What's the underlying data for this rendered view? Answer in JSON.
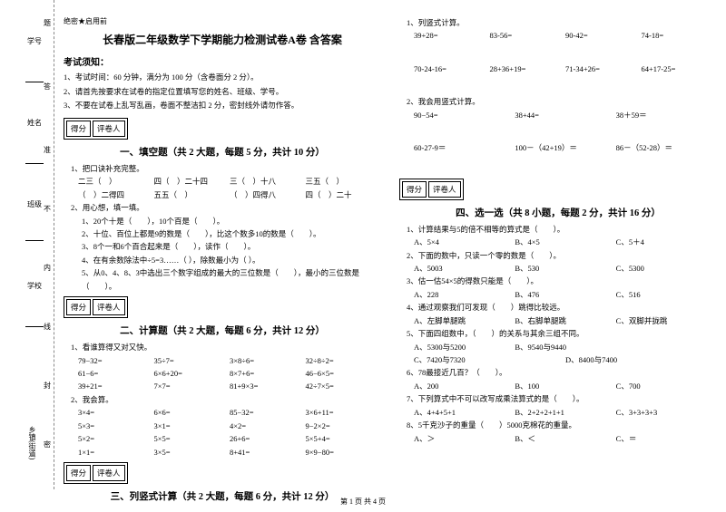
{
  "binding": {
    "labels": [
      "学号",
      "姓名",
      "班级",
      "学校",
      "乡镇(街道)"
    ],
    "markers": [
      "题",
      "答",
      "准",
      "不",
      "内",
      "线",
      "封",
      "密"
    ]
  },
  "secret": "绝密★启用前",
  "title": "长春版二年级数学下学期能力检测试卷A卷 含答案",
  "notice_head": "考试须知：",
  "notices": [
    "1、考试时间：60 分钟，满分为 100 分（含卷面分 2 分）。",
    "2、请首先按要求在试卷的指定位置填写您的姓名、班级、学号。",
    "3、不要在试卷上乱写乱画，卷面不整洁扣 2 分，密封线外请勿作答。"
  ],
  "scorebox": {
    "c1": "得分",
    "c2": "评卷人"
  },
  "s1": {
    "title": "一、填空题（共 2 大题，每题 5 分，共计 10 分）",
    "q1": "1、把口诀补充完整。",
    "q1_rows": [
      [
        "二三（　）",
        "四（　）二十四",
        "三（　）十八",
        "三五（　）"
      ],
      [
        "（　）二得四",
        "五五（　）",
        "（　）四得八",
        "四（　）二十"
      ]
    ],
    "q2": "2、用心想，填一填。",
    "q2_items": [
      "1、20个十是（　　），10个百是（　　）。",
      "2、十位、百位上都是9的数是（　　），比这个数多10的数是（　　）。",
      "3、8个一和6个百合起来是（　　），读作（　　）。",
      "4、在有余数除法中÷5=3……（ ），除数最小为（ ）。",
      "5、从0、4、8、3中选出三个数字组成的最大的三位数是（　　），最小的三位数是（　　）。"
    ]
  },
  "s2": {
    "title": "二、计算题（共 2 大题，每题 6 分，共计 12 分）",
    "q1": "1、看谁算得又对又快。",
    "q1_rows": [
      [
        "79−32=",
        "35÷7=",
        "3×8÷6=",
        "32÷8÷2="
      ],
      [
        "61−6=",
        "6×6+20=",
        "8×7+6=",
        "46−6×5="
      ],
      [
        "39+21=",
        "7×7=",
        "81+9×3=",
        "42÷7×5="
      ]
    ],
    "q2": "2、我会算。",
    "q2_rows": [
      [
        "3×4=",
        "6×6=",
        "85−32=",
        "3×6+11="
      ],
      [
        "5×3=",
        "3×1=",
        "4×2=",
        "9−2×2="
      ],
      [
        "5×2=",
        "5×5=",
        "26+6=",
        "5×5+4="
      ],
      [
        "1×1=",
        "3×5=",
        "8+41=",
        "9×9−80="
      ]
    ]
  },
  "s3": {
    "title": "三、列竖式计算（共 2 大题，每题 6 分，共计 12 分）"
  },
  "right": {
    "q1": "1、列竖式计算。",
    "q1_rows": [
      [
        "39+28=",
        "83-56=",
        "90-42=",
        "74-18="
      ],
      [
        "70-24-16=",
        "28+36+19=",
        "71-34+26=",
        "64+17-25="
      ]
    ],
    "q2": "2、我会用竖式计算。",
    "q2_rows": [
      [
        "90−54=",
        "38+44=",
        "38＋59＝"
      ],
      [
        "60-27-9＝",
        "100－（42+19）＝",
        "86－（52-28）＝"
      ]
    ]
  },
  "s4": {
    "title": "四、选一选（共 8 小题，每题 2 分，共计 16 分）",
    "items": [
      {
        "q": "1、计算结果与5的倍不相等的算式是（　　）。",
        "opts": [
          "A、5×4",
          "B、4×5",
          "C、5＋4"
        ]
      },
      {
        "q": "2、下面的数中，只读一个零的数是（　　）。",
        "opts": [
          "A、5003",
          "B、530",
          "C、5300"
        ]
      },
      {
        "q": "3、估一估54×5的得数只能是（　　）。",
        "opts": [
          "A、228",
          "B、476",
          "C、516"
        ]
      },
      {
        "q": "4、通过观察我们可发现（　　）跳得比较远。",
        "opts": [
          "A、左脚单腿跳",
          "B、右脚单腿跳",
          "C、双脚并拢跳"
        ]
      },
      {
        "q": "5、下面四组数中，（　　）的关系与其余三组不同。",
        "opts": [
          "A、5300与5200",
          "B、9540与9440",
          "",
          "C、7420与7320",
          "D、8400与7400"
        ]
      },
      {
        "q": "6、78最接近几百？（　　）。",
        "opts": [
          "A、200",
          "B、100",
          "C、700"
        ]
      },
      {
        "q": "7、下列算式中不可以改写成乘法算式的是（　　）。",
        "opts": [
          "A、4+4+5+1",
          "B、2+2+2+1+1",
          "C、3+3+3+3"
        ]
      },
      {
        "q": "8、5千克沙子的重量（　　）5000克棉花的重量。",
        "opts": [
          "A、＞",
          "B、＜",
          "C、＝"
        ]
      }
    ]
  },
  "footer": "第 1 页 共 4 页"
}
